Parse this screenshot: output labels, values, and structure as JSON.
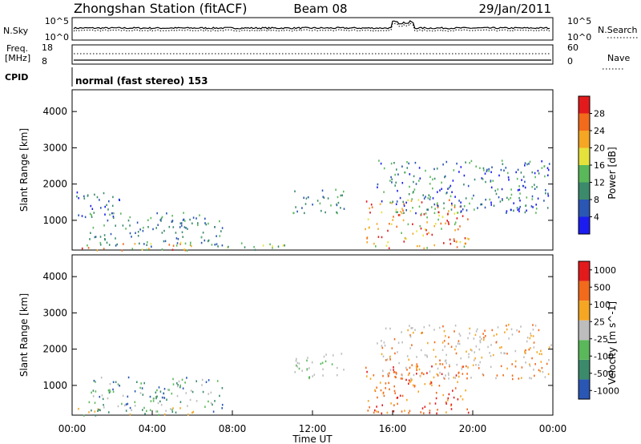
{
  "header": {
    "station": "Zhongshan Station (fitACF)",
    "beam": "Beam 08",
    "date": "29/Jan/2011"
  },
  "panels": {
    "nsky_label": "N.Sky",
    "nsky_ticks": [
      "10^5",
      "10^0"
    ],
    "nsearch_label": "N.Search",
    "nsearch_ticks": [
      "10^5",
      "10^0"
    ],
    "freq_label_1": "Freq.",
    "freq_label_2": "[MHz]",
    "freq_ticks": [
      "18",
      "8"
    ],
    "nave_label": "Nave",
    "nave_ticks": [
      "60",
      "0"
    ],
    "cpid_label": "CPID",
    "cpid_text": "normal (fast stereo) 153"
  },
  "chart_data": [
    {
      "type": "heatmap",
      "title": "",
      "ylabel": "Slant Range [km]",
      "y_ticks": [
        "1000",
        "2000",
        "3000",
        "4000"
      ],
      "ylim": [
        180,
        4600
      ],
      "xlim": [
        0,
        24
      ],
      "colorbar_label": "Power [dB]",
      "colorbar_ticks": [
        "4",
        "8",
        "12",
        "16",
        "20",
        "24",
        "28"
      ],
      "colorbar_colors": [
        "#1c1cf0",
        "#2a56b4",
        "#3c8a6c",
        "#5ab85a",
        "#e6e23c",
        "#f5a623",
        "#f26a1b",
        "#e31a1c"
      ],
      "scatter_regions": [
        {
          "t0": 0.0,
          "t1": 6.2,
          "r0": 190,
          "r1": 420,
          "levels": [
            3,
            4,
            5,
            6,
            7
          ]
        },
        {
          "t0": 0.2,
          "t1": 2.4,
          "r0": 1100,
          "r1": 1800,
          "levels": [
            0,
            1,
            2
          ]
        },
        {
          "t0": 0.8,
          "t1": 7.5,
          "r0": 300,
          "r1": 1250,
          "levels": [
            1,
            2,
            3
          ]
        },
        {
          "t0": 7.2,
          "t1": 10.8,
          "r0": 190,
          "r1": 400,
          "levels": [
            2,
            3,
            4
          ]
        },
        {
          "t0": 11.0,
          "t1": 13.6,
          "r0": 1200,
          "r1": 1900,
          "levels": [
            1,
            2,
            3
          ]
        },
        {
          "t0": 14.6,
          "t1": 19.8,
          "r0": 250,
          "r1": 1600,
          "levels": [
            3,
            4,
            5,
            6,
            7
          ]
        },
        {
          "t0": 15.2,
          "t1": 23.9,
          "r0": 1200,
          "r1": 2700,
          "levels": [
            0,
            1,
            2,
            3
          ]
        }
      ]
    },
    {
      "type": "heatmap",
      "title": "",
      "ylabel": "Slant Range [km]",
      "y_ticks": [
        "1000",
        "2000",
        "3000",
        "4000"
      ],
      "ylim": [
        180,
        4600
      ],
      "xlim": [
        0,
        24
      ],
      "colorbar_label": "Velocity [m s^-1]",
      "colorbar_ticks": [
        "1000",
        "500",
        "100",
        "25",
        "-25",
        "-100",
        "-500",
        "-1000"
      ],
      "colorbar_colors": [
        "#2a56b4",
        "#3c8a6c",
        "#5ab85a",
        "#bdbdbd",
        "#f5a623",
        "#f26a1b",
        "#e31a1c"
      ],
      "scatter_regions": [
        {
          "t0": 0.0,
          "t1": 6.2,
          "r0": 190,
          "r1": 420,
          "levels": [
            1,
            2,
            4
          ]
        },
        {
          "t0": 0.8,
          "t1": 7.5,
          "r0": 300,
          "r1": 1250,
          "levels": [
            0,
            1,
            2,
            3
          ]
        },
        {
          "t0": 11.0,
          "t1": 13.6,
          "r0": 1200,
          "r1": 1900,
          "levels": [
            3,
            3,
            2
          ]
        },
        {
          "t0": 14.6,
          "t1": 19.8,
          "r0": 250,
          "r1": 1600,
          "levels": [
            4,
            5,
            5,
            6
          ]
        },
        {
          "t0": 15.2,
          "t1": 23.9,
          "r0": 1200,
          "r1": 2700,
          "levels": [
            3,
            3,
            4,
            5
          ]
        }
      ]
    }
  ],
  "xaxis": {
    "label": "Time UT",
    "ticks": [
      "00:00",
      "04:00",
      "08:00",
      "12:00",
      "16:00",
      "20:00",
      "00:00"
    ]
  }
}
